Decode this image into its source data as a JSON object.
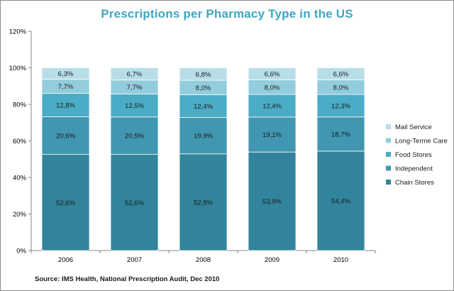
{
  "chart_data": {
    "type": "bar",
    "stacked": true,
    "title": "Prescriptions per Pharmacy Type in the US",
    "categories": [
      "2006",
      "2007",
      "2008",
      "2009",
      "2010"
    ],
    "series": [
      {
        "name": "Chain Stores",
        "color": "#31849b",
        "values": [
          52.6,
          52.6,
          52.9,
          53.9,
          54.4
        ],
        "labels": [
          "52,6%",
          "52,6%",
          "52,9%",
          "53,9%",
          "54,4%"
        ]
      },
      {
        "name": "Independent",
        "color": "#4197b1",
        "values": [
          20.6,
          20.5,
          19.9,
          19.1,
          18.7
        ],
        "labels": [
          "20,6%",
          "20,5%",
          "19,9%",
          "19,1%",
          "18,7%"
        ]
      },
      {
        "name": "Food Stores",
        "color": "#4bacc6",
        "values": [
          12.8,
          12.5,
          12.4,
          12.4,
          12.3
        ],
        "labels": [
          "12,8%",
          "12,5%",
          "12,4%",
          "12,4%",
          "12,3%"
        ]
      },
      {
        "name": "Long-Terme Care",
        "color": "#93cddd",
        "values": [
          7.7,
          7.7,
          8.0,
          8.0,
          8.0
        ],
        "labels": [
          "7,7%",
          "7,7%",
          "8,0%",
          "8,0%",
          "8,0%"
        ]
      },
      {
        "name": "Mail Service",
        "color": "#b7dee8",
        "values": [
          6.3,
          6.7,
          6.8,
          6.6,
          6.6
        ],
        "labels": [
          "6,3%",
          "6,7%",
          "6,8%",
          "6,6%",
          "6,6%"
        ]
      }
    ],
    "ylim": [
      0,
      120
    ],
    "yticks": [
      "0%",
      "20%",
      "40%",
      "60%",
      "80%",
      "100%",
      "120%"
    ],
    "ytick_values": [
      0,
      20,
      40,
      60,
      80,
      100,
      120
    ],
    "grid": false,
    "legend_position": "right"
  },
  "source": "Source: IMS Health, National Prescription Audit, Dec 2010"
}
